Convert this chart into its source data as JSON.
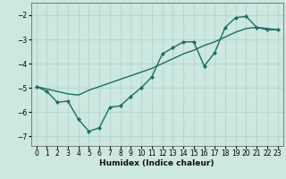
{
  "xlabel": "Humidex (Indice chaleur)",
  "ylabel": "",
  "background_color": "#cce8e0",
  "grid_color": "#b8d8d0",
  "line_color": "#1a6e64",
  "xlim": [
    -0.5,
    23.5
  ],
  "ylim": [
    -7.4,
    -1.5
  ],
  "yticks": [
    -7,
    -6,
    -5,
    -4,
    -3,
    -2
  ],
  "xticks": [
    0,
    1,
    2,
    3,
    4,
    5,
    6,
    7,
    8,
    9,
    10,
    11,
    12,
    13,
    14,
    15,
    16,
    17,
    18,
    19,
    20,
    21,
    22,
    23
  ],
  "line1_x": [
    0,
    1,
    2,
    3,
    4,
    5,
    6,
    7,
    8,
    9,
    10,
    11,
    12,
    13,
    14,
    15,
    16,
    17,
    18,
    19,
    20,
    21,
    22,
    23
  ],
  "line1_y": [
    -4.95,
    -5.15,
    -5.6,
    -5.55,
    -6.3,
    -6.8,
    -6.65,
    -5.8,
    -5.75,
    -5.35,
    -5.0,
    -4.55,
    -3.6,
    -3.35,
    -3.1,
    -3.1,
    -4.1,
    -3.55,
    -2.5,
    -2.1,
    -2.05,
    -2.5,
    -2.6,
    -2.6
  ],
  "line2_x": [
    0,
    1,
    2,
    3,
    4,
    5,
    6,
    7,
    8,
    9,
    10,
    11,
    12,
    13,
    14,
    15,
    16,
    17,
    18,
    19,
    20,
    21,
    22,
    23
  ],
  "line2_y": [
    -4.95,
    -5.05,
    -5.15,
    -5.25,
    -5.3,
    -5.1,
    -4.95,
    -4.8,
    -4.65,
    -4.5,
    -4.35,
    -4.2,
    -4.0,
    -3.8,
    -3.6,
    -3.45,
    -3.25,
    -3.1,
    -2.9,
    -2.7,
    -2.55,
    -2.5,
    -2.55,
    -2.6
  ],
  "tick_fontsize": 5.5,
  "xlabel_fontsize": 6.5
}
